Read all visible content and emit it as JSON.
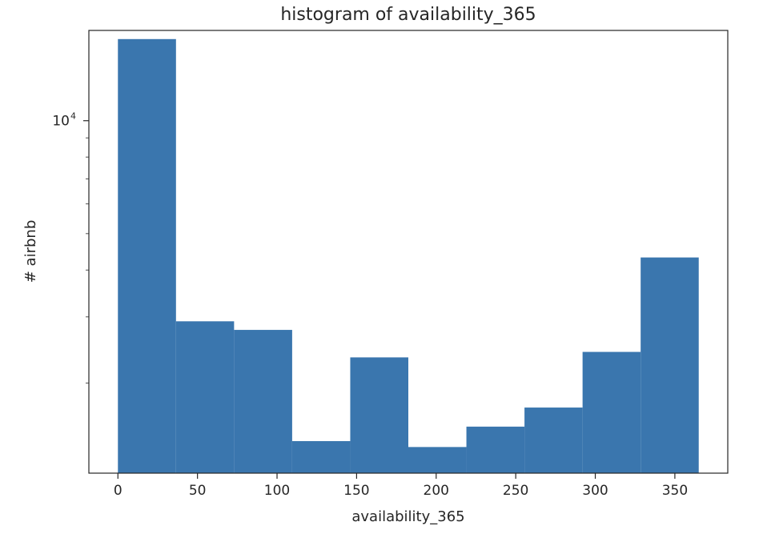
{
  "chart_data": {
    "type": "bar",
    "title": "histogram of availability_365",
    "xlabel": "availability_365",
    "ylabel": "# airbnb",
    "xlim": [
      -18.25,
      383.25
    ],
    "ylim": [
      1150,
      17400
    ],
    "y_scale": "log",
    "grid": false,
    "legend": "none",
    "x_ticks": [
      0,
      50,
      100,
      150,
      200,
      250,
      300,
      350
    ],
    "y_ticks": [
      {
        "value": 10000,
        "base": "10",
        "exponent": "4"
      }
    ],
    "bin_edges": [
      0,
      36.5,
      73,
      109.5,
      146,
      182.5,
      219,
      255.5,
      292,
      328.5,
      365
    ],
    "values": [
      16500,
      2920,
      2770,
      1400,
      2340,
      1350,
      1530,
      1720,
      2420,
      4320
    ],
    "bar_color": "#3a76ae"
  }
}
